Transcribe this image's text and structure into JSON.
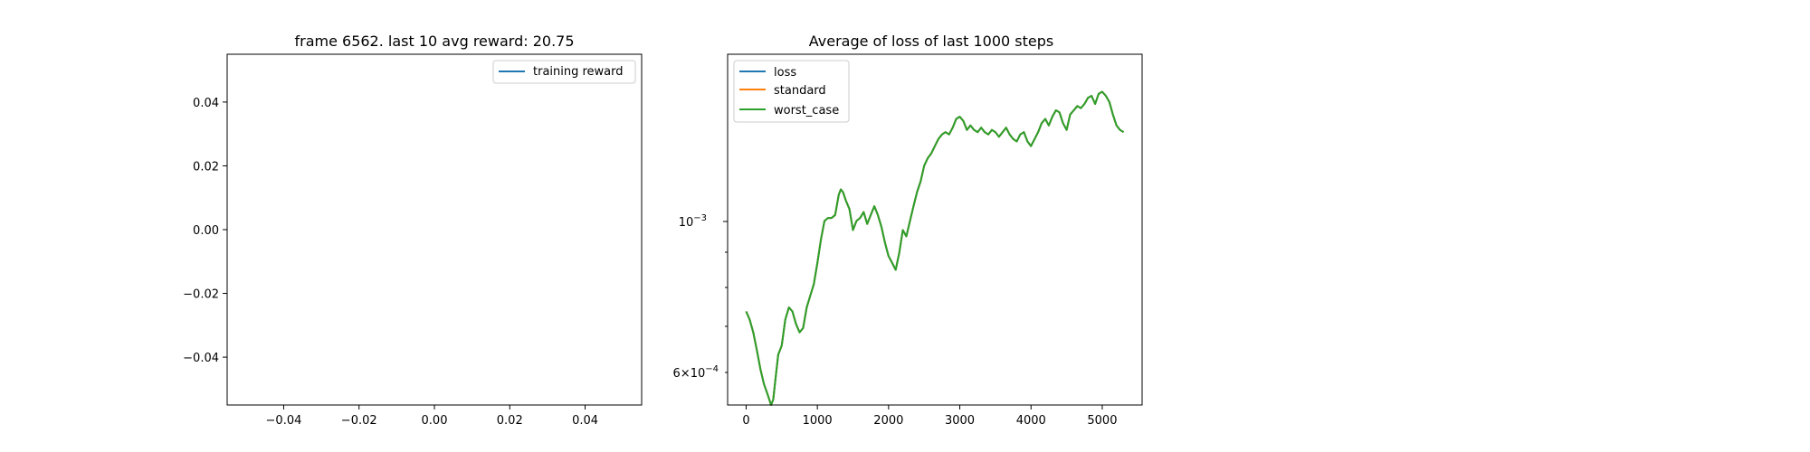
{
  "chart_data": [
    {
      "type": "line",
      "title": "frame 6562. last 10 avg reward: 20.75",
      "xlabel": "",
      "ylabel": "",
      "xlim": [
        -0.055,
        0.055
      ],
      "ylim": [
        -0.055,
        0.055
      ],
      "x_ticks": [
        "−0.04",
        "−0.02",
        "0.00",
        "0.02",
        "0.04"
      ],
      "y_ticks": [
        "−0.04",
        "−0.02",
        "0.00",
        "0.02",
        "0.04"
      ],
      "grid": false,
      "legend_position": "top-right",
      "series": [
        {
          "name": "training reward",
          "color": "#1f77b4",
          "values": []
        }
      ]
    },
    {
      "type": "line",
      "title": "Average of loss of last 1000 steps",
      "xlabel": "",
      "ylabel": "",
      "yscale": "log",
      "xlim": [
        -260,
        5560
      ],
      "ylim": [
        0.00057,
        0.00176
      ],
      "x_ticks": [
        "0",
        "1000",
        "2000",
        "3000",
        "4000",
        "5000"
      ],
      "y_tick_labels": {
        "major": "10",
        "major_exp": "−3",
        "minor_mult": "6×10",
        "minor_exp": "−4"
      },
      "grid": false,
      "legend_position": "top-left",
      "series": [
        {
          "name": "loss",
          "color": "#1f77b4"
        },
        {
          "name": "standard",
          "color": "#ff7f0e"
        },
        {
          "name": "worst_case",
          "color": "#2ca02c"
        }
      ],
      "x": [
        0,
        50,
        100,
        150,
        200,
        250,
        300,
        350,
        380,
        420,
        450,
        500,
        550,
        600,
        650,
        700,
        750,
        800,
        850,
        900,
        950,
        1000,
        1050,
        1100,
        1150,
        1200,
        1250,
        1300,
        1330,
        1360,
        1400,
        1450,
        1500,
        1550,
        1600,
        1650,
        1700,
        1750,
        1800,
        1850,
        1900,
        1950,
        2000,
        2050,
        2100,
        2150,
        2200,
        2250,
        2300,
        2350,
        2400,
        2450,
        2500,
        2550,
        2600,
        2650,
        2700,
        2750,
        2800,
        2850,
        2900,
        2950,
        3000,
        3050,
        3100,
        3150,
        3200,
        3250,
        3300,
        3350,
        3400,
        3450,
        3500,
        3550,
        3600,
        3650,
        3700,
        3750,
        3800,
        3850,
        3900,
        3950,
        4000,
        4050,
        4100,
        4150,
        4200,
        4250,
        4300,
        4350,
        4400,
        4450,
        4500,
        4550,
        4600,
        4650,
        4700,
        4750,
        4800,
        4850,
        4900,
        4950,
        5000,
        5050,
        5100,
        5150,
        5200,
        5250,
        5300
      ],
      "values": [
        0.00077,
        0.00075,
        0.00072,
        0.00068,
        0.00064,
        0.00061,
        0.00059,
        0.00057,
        0.00058,
        0.00063,
        0.00067,
        0.00069,
        0.00075,
        0.00078,
        0.00077,
        0.00074,
        0.00072,
        0.00073,
        0.00078,
        0.00081,
        0.00084,
        0.0009,
        0.00097,
        0.00103,
        0.00104,
        0.00104,
        0.00105,
        0.00112,
        0.00114,
        0.00113,
        0.0011,
        0.00107,
        0.001,
        0.00103,
        0.00104,
        0.00106,
        0.00102,
        0.00105,
        0.00108,
        0.00105,
        0.00101,
        0.00096,
        0.00092,
        0.0009,
        0.00088,
        0.00093,
        0.001,
        0.00098,
        0.00103,
        0.00108,
        0.00113,
        0.00117,
        0.00123,
        0.00126,
        0.00128,
        0.00131,
        0.00134,
        0.00136,
        0.00137,
        0.00136,
        0.00139,
        0.00143,
        0.00144,
        0.00142,
        0.00138,
        0.0014,
        0.00138,
        0.00137,
        0.00139,
        0.00137,
        0.00136,
        0.00138,
        0.00137,
        0.00135,
        0.00137,
        0.00139,
        0.00136,
        0.00134,
        0.00133,
        0.00136,
        0.00137,
        0.00133,
        0.00131,
        0.00134,
        0.00137,
        0.00141,
        0.00143,
        0.0014,
        0.00144,
        0.00147,
        0.00146,
        0.00141,
        0.00138,
        0.00145,
        0.00147,
        0.00149,
        0.00148,
        0.0015,
        0.00153,
        0.00154,
        0.0015,
        0.00155,
        0.00156,
        0.00154,
        0.00151,
        0.00145,
        0.0014,
        0.00138,
        0.00137
      ]
    }
  ]
}
